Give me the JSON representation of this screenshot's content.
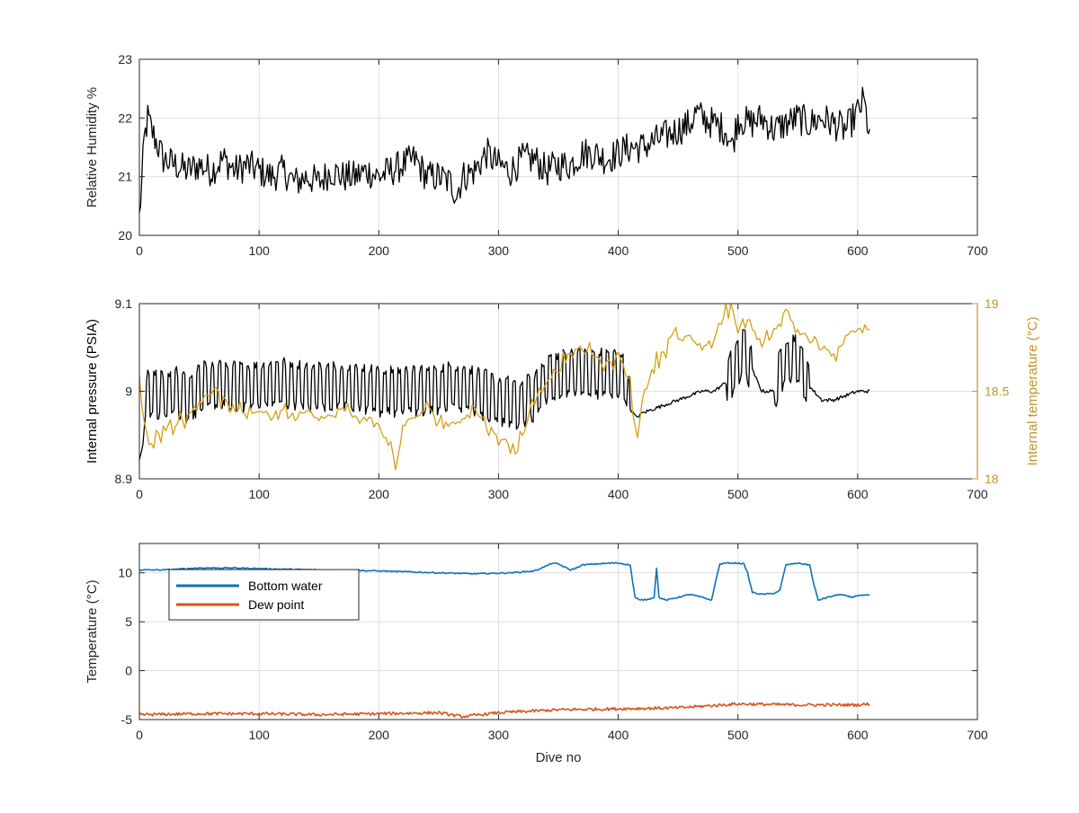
{
  "colors": {
    "humidity": "#000000",
    "pressure": "#000000",
    "internal_temperature": "#D4A017",
    "internal_temperature_axis": "#C0952A",
    "bottom_water": "#0E72B5",
    "dew_point": "#D95319",
    "grid": "#DFDFDF",
    "axis": "#262626"
  },
  "chart_data": [
    {
      "type": "line",
      "ylabel": "Relative Humidity %",
      "xlim": [
        0,
        700
      ],
      "ylim": [
        20,
        23
      ],
      "xticks": [
        "0",
        "100",
        "200",
        "300",
        "400",
        "500",
        "600",
        "700"
      ],
      "yticks": [
        "20",
        "21",
        "22",
        "23"
      ],
      "grid": true,
      "series": [
        {
          "color_key": "humidity",
          "x": [
            0,
            2,
            4,
            7,
            10,
            20,
            30,
            40,
            50,
            60,
            70,
            80,
            90,
            100,
            110,
            120,
            130,
            140,
            150,
            160,
            170,
            180,
            190,
            200,
            210,
            220,
            230,
            240,
            250,
            260,
            265,
            270,
            280,
            290,
            300,
            310,
            320,
            330,
            340,
            350,
            360,
            370,
            380,
            390,
            400,
            410,
            420,
            430,
            440,
            450,
            460,
            465,
            470,
            480,
            490,
            495,
            500,
            510,
            520,
            530,
            540,
            550,
            560,
            570,
            580,
            590,
            600,
            605,
            610
          ],
          "y": [
            20.3,
            20.9,
            21.6,
            22.0,
            21.8,
            21.3,
            21.2,
            21.1,
            21.2,
            21.1,
            21.3,
            21.1,
            21.2,
            21.1,
            21.0,
            21.1,
            20.9,
            21.0,
            20.9,
            21.1,
            21.0,
            21.0,
            21.1,
            21.0,
            21.1,
            21.2,
            21.3,
            21.0,
            21.0,
            20.9,
            20.7,
            21.0,
            21.1,
            21.4,
            21.2,
            21.1,
            21.3,
            21.3,
            21.1,
            21.2,
            21.2,
            21.4,
            21.4,
            21.3,
            21.4,
            21.5,
            21.5,
            21.6,
            21.7,
            21.8,
            21.9,
            22.1,
            22.0,
            21.9,
            21.8,
            21.5,
            22.0,
            21.9,
            22.0,
            21.8,
            21.9,
            22.0,
            21.9,
            22.0,
            21.9,
            21.8,
            22.1,
            22.3,
            21.7
          ]
        }
      ]
    },
    {
      "type": "line",
      "ylabel": "Internal pressure (PSIA)",
      "y2label": "Internal temperature (°C)",
      "xlim": [
        0,
        700
      ],
      "ylim": [
        8.9,
        9.1
      ],
      "y2lim": [
        18,
        19
      ],
      "xticks": [
        "0",
        "100",
        "200",
        "300",
        "400",
        "500",
        "600",
        "700"
      ],
      "yticks": [
        "8.9",
        "9",
        "9.1"
      ],
      "y2ticks": [
        "18",
        "18.5",
        "19"
      ],
      "grid": true,
      "series": [
        {
          "axis": "left",
          "color_key": "pressure",
          "x": [
            0,
            3,
            7,
            10,
            20,
            30,
            40,
            48,
            52,
            60,
            70,
            80,
            100,
            120,
            140,
            160,
            180,
            200,
            220,
            240,
            260,
            280,
            300,
            320,
            330,
            340,
            360,
            380,
            400,
            405,
            410,
            415,
            420,
            430,
            440,
            450,
            460,
            470,
            480,
            490,
            500,
            505,
            510,
            520,
            530,
            540,
            550,
            560,
            570,
            580,
            590,
            600,
            610
          ],
          "y": [
            8.92,
            8.94,
            9.0,
            9.0,
            8.995,
            9.0,
            8.99,
            9.0,
            9.005,
            9.005,
            9.01,
            9.005,
            9.005,
            9.01,
            9.005,
            9.005,
            9.005,
            9.0,
            9.0,
            9.0,
            9.005,
            9.0,
            8.99,
            8.985,
            8.995,
            9.015,
            9.02,
            9.02,
            9.02,
            9.02,
            8.98,
            8.97,
            8.975,
            8.98,
            8.985,
            8.99,
            8.995,
            9.0,
            9.0,
            9.01,
            9.035,
            9.05,
            9.03,
            9.0,
            9.0,
            9.035,
            9.04,
            9.005,
            8.99,
            8.99,
            8.995,
            9.0,
            9.0
          ]
        },
        {
          "axis": "right",
          "color_key": "internal_temperature",
          "x": [
            0,
            3,
            8,
            15,
            25,
            40,
            50,
            60,
            70,
            80,
            90,
            100,
            110,
            120,
            130,
            140,
            150,
            160,
            170,
            180,
            190,
            200,
            210,
            214,
            220,
            230,
            240,
            250,
            260,
            270,
            280,
            290,
            300,
            310,
            320,
            330,
            340,
            350,
            360,
            370,
            380,
            390,
            400,
            410,
            415,
            420,
            430,
            440,
            445,
            450,
            460,
            470,
            480,
            490,
            495,
            500,
            510,
            520,
            530,
            540,
            550,
            560,
            570,
            580,
            590,
            600,
            610
          ],
          "y": [
            18.6,
            18.35,
            18.2,
            18.25,
            18.3,
            18.35,
            18.45,
            18.5,
            18.45,
            18.4,
            18.35,
            18.4,
            18.35,
            18.4,
            18.35,
            18.4,
            18.35,
            18.35,
            18.4,
            18.35,
            18.35,
            18.3,
            18.2,
            18.05,
            18.3,
            18.35,
            18.4,
            18.35,
            18.3,
            18.35,
            18.4,
            18.3,
            18.25,
            18.15,
            18.25,
            18.45,
            18.55,
            18.65,
            18.7,
            18.75,
            18.7,
            18.65,
            18.7,
            18.55,
            18.2,
            18.45,
            18.65,
            18.75,
            18.85,
            18.8,
            18.8,
            18.75,
            18.8,
            18.95,
            19.0,
            18.85,
            18.9,
            18.75,
            18.85,
            18.95,
            18.85,
            18.8,
            18.75,
            18.7,
            18.8,
            18.85,
            18.85
          ]
        }
      ]
    },
    {
      "type": "line",
      "xlabel": "Dive no",
      "ylabel": "Temperature (°C)",
      "xlim": [
        0,
        700
      ],
      "ylim": [
        -5,
        13
      ],
      "xticks": [
        "0",
        "100",
        "200",
        "300",
        "400",
        "500",
        "600",
        "700"
      ],
      "yticks": [
        "-5",
        "0",
        "5",
        "10"
      ],
      "grid": true,
      "legend": "top-left",
      "series": [
        {
          "name": "Bottom water",
          "color_key": "bottom_water",
          "x": [
            0,
            20,
            50,
            80,
            110,
            150,
            200,
            250,
            280,
            310,
            330,
            340,
            345,
            350,
            360,
            365,
            370,
            380,
            395,
            400,
            405,
            410,
            414,
            418,
            425,
            430,
            432,
            434,
            440,
            460,
            470,
            478,
            482,
            485,
            490,
            500,
            505,
            508,
            512,
            520,
            530,
            535,
            540,
            550,
            560,
            563,
            567,
            575,
            585,
            595,
            600,
            610
          ],
          "y": [
            10.3,
            10.3,
            10.5,
            10.5,
            10.4,
            10.3,
            10.2,
            10.0,
            9.9,
            10.0,
            10.2,
            10.7,
            11.0,
            10.9,
            10.3,
            10.5,
            10.8,
            10.9,
            11.0,
            11.0,
            10.9,
            10.8,
            7.5,
            7.2,
            7.3,
            7.5,
            10.5,
            7.5,
            7.2,
            7.8,
            7.5,
            7.2,
            9.5,
            10.9,
            11.0,
            11.0,
            10.9,
            10.0,
            8.0,
            7.8,
            7.9,
            8.2,
            10.8,
            11.0,
            10.8,
            9.0,
            7.2,
            7.5,
            7.8,
            7.5,
            7.7,
            7.7
          ]
        },
        {
          "name": "Dew point",
          "color_key": "dew_point",
          "x": [
            0,
            50,
            100,
            150,
            200,
            250,
            270,
            300,
            350,
            400,
            450,
            500,
            550,
            600,
            610
          ],
          "y": [
            -4.5,
            -4.4,
            -4.4,
            -4.5,
            -4.4,
            -4.3,
            -4.7,
            -4.3,
            -4.0,
            -3.9,
            -3.8,
            -3.4,
            -3.5,
            -3.5,
            -3.4
          ]
        }
      ]
    }
  ]
}
